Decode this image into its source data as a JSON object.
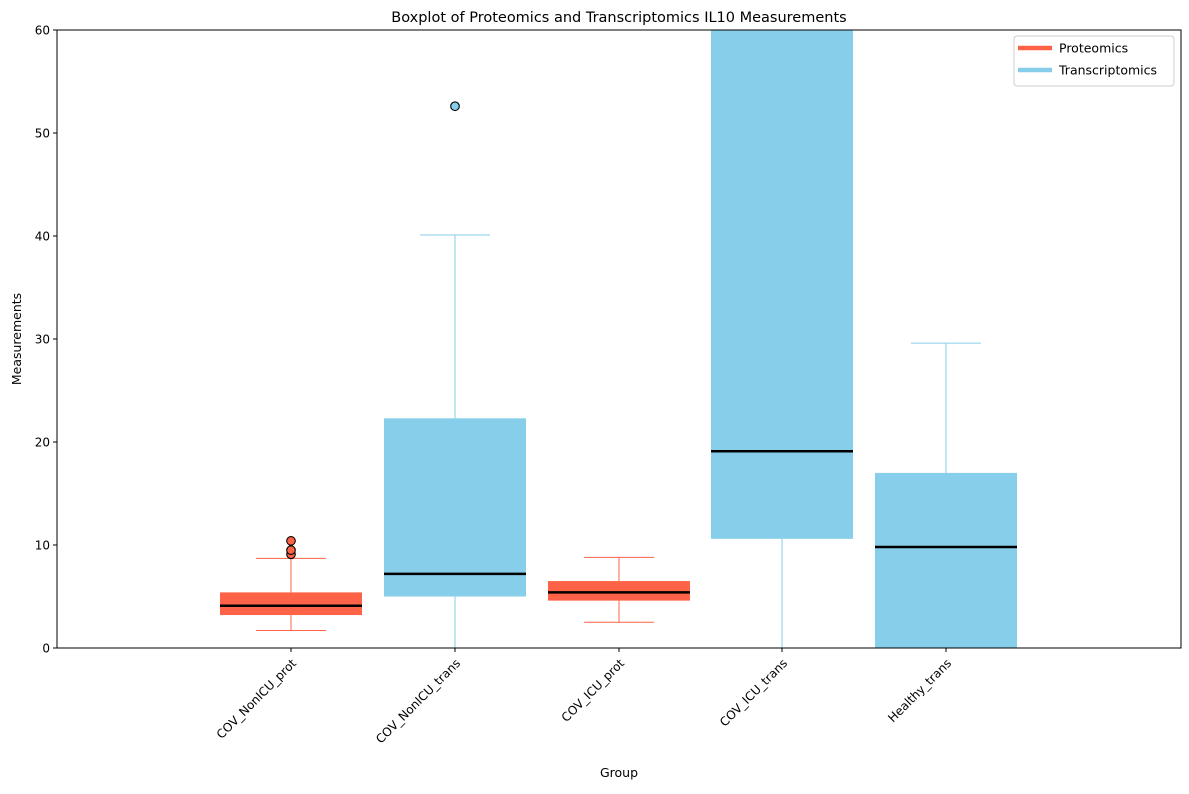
{
  "chart_data": {
    "type": "boxplot",
    "title": "Boxplot of Proteomics and Transcriptomics IL10 Measurements",
    "xlabel": "Group",
    "ylabel": "Measurements",
    "ylim": [
      0,
      60
    ],
    "y_ticks": [
      0,
      10,
      20,
      30,
      40,
      50,
      60
    ],
    "categories": [
      "COV_NonICU_prot",
      "COV_NonICU_trans",
      "COV_ICU_prot",
      "COV_ICU_trans",
      "Healthy_trans"
    ],
    "grid": false,
    "legend_position": "top-right",
    "legend": [
      {
        "label": "Proteomics",
        "color": "#FF6347"
      },
      {
        "label": "Transcriptomics",
        "color": "#87CEEB"
      }
    ],
    "boxes": [
      {
        "category": "COV_NonICU_prot",
        "series": "Proteomics",
        "q1": 3.2,
        "median": 4.1,
        "q3": 5.4,
        "whisker_low": 1.7,
        "whisker_high": 8.7,
        "outliers": [
          9.1,
          9.5,
          10.4
        ]
      },
      {
        "category": "COV_NonICU_trans",
        "series": "Transcriptomics",
        "q1": 5.0,
        "median": 7.2,
        "q3": 22.3,
        "whisker_low": 0,
        "whisker_high": 40.1,
        "outliers": [
          52.6
        ]
      },
      {
        "category": "COV_ICU_prot",
        "series": "Proteomics",
        "q1": 4.6,
        "median": 5.4,
        "q3": 6.5,
        "whisker_low": 2.5,
        "whisker_high": 8.8,
        "outliers": []
      },
      {
        "category": "COV_ICU_trans",
        "series": "Transcriptomics",
        "q1": 10.6,
        "median": 19.1,
        "q3": 62.0,
        "whisker_low": 0,
        "whisker_high": 62.0,
        "outliers": []
      },
      {
        "category": "Healthy_trans",
        "series": "Transcriptomics",
        "q1": 0,
        "median": 9.8,
        "q3": 17.0,
        "whisker_low": 0,
        "whisker_high": 29.6,
        "outliers": []
      }
    ]
  }
}
